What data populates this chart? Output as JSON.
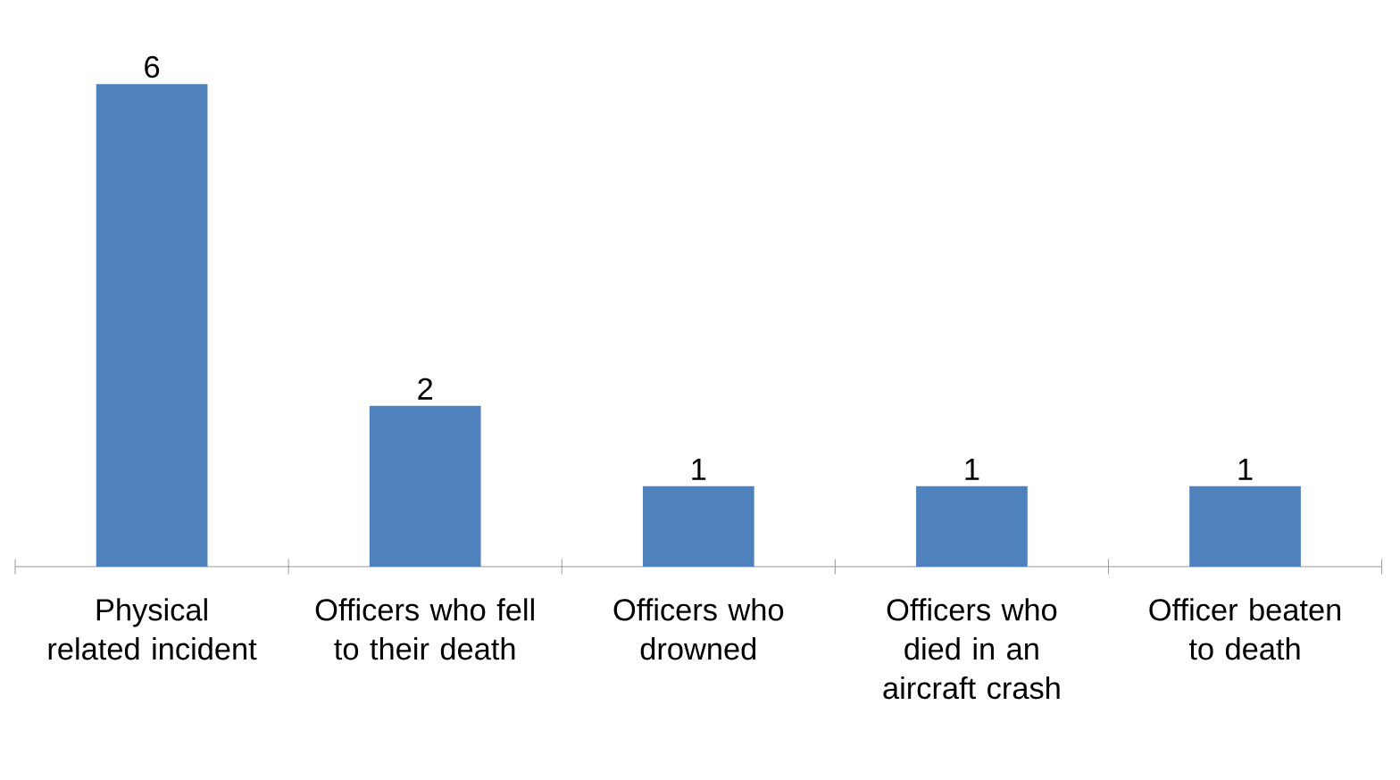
{
  "chart_data": {
    "type": "bar",
    "categories": [
      "Physical related incident",
      "Officers who fell to their death",
      "Officers who drowned",
      "Officers who died in an aircraft crash",
      "Officer beaten to death"
    ],
    "values": [
      6,
      2,
      1,
      1,
      1
    ],
    "color": "#4f81bd",
    "data_labels": true
  }
}
